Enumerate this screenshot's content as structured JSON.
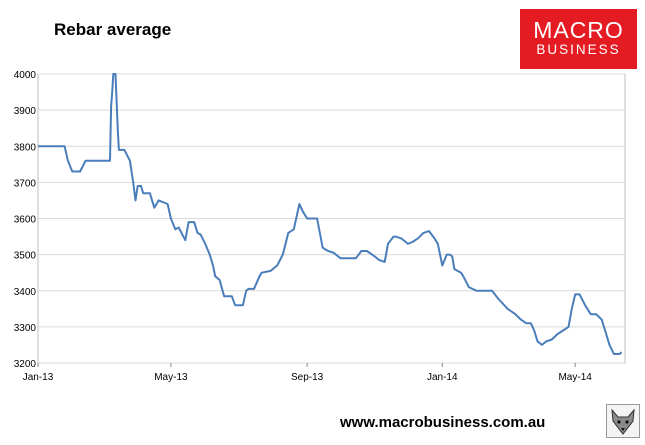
{
  "title": "Rebar average",
  "logo": {
    "line1": "MACRO",
    "line2": "BUSINESS"
  },
  "footer": "www.macrobusiness.com.au",
  "colors": {
    "line": "#4a7ebb",
    "brand": "#e41b22",
    "grid": "#d9d9d9"
  },
  "chart_data": {
    "type": "line",
    "title": "Rebar average",
    "xlabel": "",
    "ylabel": "",
    "ylim": [
      3200,
      4000
    ],
    "yticks": [
      "3200",
      "3300",
      "3400",
      "3500",
      "3600",
      "3700",
      "3800",
      "3900",
      "4000"
    ],
    "xticks": [
      "Jan-13",
      "May-13",
      "Sep-13",
      "Jan-14",
      "May-14"
    ],
    "xlim": [
      "2013-01-01",
      "2014-06-15"
    ],
    "grid": "horizontal",
    "legend": "none",
    "series": [
      {
        "x": [
          "2013-01-01",
          "2013-01-20",
          "2013-01-25",
          "2013-01-28",
          "2013-02-01",
          "2013-02-08",
          "2013-02-13",
          "2013-02-15",
          "2013-02-20",
          "2013-03-07",
          "2013-03-08",
          "2013-03-09",
          "2013-03-10",
          "2013-03-12",
          "2013-03-14",
          "2013-03-15",
          "2013-03-16",
          "2013-03-20",
          "2013-03-25",
          "2013-03-28",
          "2013-03-30",
          "2013-04-01",
          "2013-04-04",
          "2013-04-06",
          "2013-04-12",
          "2013-04-16",
          "2013-04-20",
          "2013-04-28",
          "2013-05-01",
          "2013-05-05",
          "2013-05-08",
          "2013-05-14",
          "2013-05-17",
          "2013-05-22",
          "2013-05-25",
          "2013-05-28",
          "2013-06-01",
          "2013-06-05",
          "2013-06-08",
          "2013-06-10",
          "2013-06-14",
          "2013-06-18",
          "2013-06-20",
          "2013-06-22",
          "2013-06-25",
          "2013-06-28",
          "2013-07-05",
          "2013-07-08",
          "2013-07-10",
          "2013-07-15",
          "2013-07-20",
          "2013-07-22",
          "2013-07-30",
          "2013-08-05",
          "2013-08-10",
          "2013-08-15",
          "2013-08-20",
          "2013-08-25",
          "2013-08-28",
          "2013-09-01",
          "2013-09-05",
          "2013-09-10",
          "2013-09-15",
          "2013-09-17",
          "2013-09-20",
          "2013-09-25",
          "2013-10-01",
          "2013-10-10",
          "2013-10-15",
          "2013-10-20",
          "2013-10-25",
          "2013-11-01",
          "2013-11-05",
          "2013-11-10",
          "2013-11-13",
          "2013-11-18",
          "2013-11-20",
          "2013-11-25",
          "2013-12-01",
          "2013-12-05",
          "2013-12-10",
          "2013-12-15",
          "2013-12-20",
          "2013-12-25",
          "2013-12-28",
          "2014-01-01",
          "2014-01-05",
          "2014-01-08",
          "2014-01-10",
          "2014-01-12",
          "2014-01-18",
          "2014-01-20",
          "2014-01-25",
          "2014-02-01",
          "2014-02-08",
          "2014-02-15",
          "2014-02-20",
          "2014-03-01",
          "2014-03-08",
          "2014-03-13",
          "2014-03-18",
          "2014-03-22",
          "2014-03-25",
          "2014-03-28",
          "2014-04-01",
          "2014-04-05",
          "2014-04-10",
          "2014-04-15",
          "2014-04-20",
          "2014-04-25",
          "2014-04-28",
          "2014-05-01",
          "2014-05-05",
          "2014-05-10",
          "2014-05-15",
          "2014-05-20",
          "2014-05-25",
          "2014-05-28",
          "2014-06-01",
          "2014-06-05",
          "2014-06-10",
          "2014-06-12"
        ],
        "y": [
          3800,
          3800,
          3800,
          3760,
          3730,
          3730,
          3760,
          3760,
          3760,
          3760,
          3910,
          3950,
          4020,
          4020,
          3850,
          3790,
          3790,
          3790,
          3760,
          3700,
          3650,
          3690,
          3690,
          3670,
          3670,
          3630,
          3650,
          3640,
          3600,
          3570,
          3575,
          3540,
          3590,
          3590,
          3560,
          3555,
          3530,
          3500,
          3470,
          3440,
          3430,
          3385,
          3385,
          3385,
          3385,
          3360,
          3360,
          3400,
          3405,
          3405,
          3440,
          3450,
          3455,
          3470,
          3500,
          3560,
          3570,
          3640,
          3620,
          3600,
          3600,
          3600,
          3520,
          3515,
          3510,
          3505,
          3490,
          3490,
          3490,
          3510,
          3510,
          3495,
          3485,
          3480,
          3530,
          3550,
          3550,
          3545,
          3530,
          3535,
          3545,
          3560,
          3565,
          3545,
          3530,
          3470,
          3500,
          3500,
          3495,
          3460,
          3450,
          3440,
          3410,
          3400,
          3400,
          3400,
          3380,
          3350,
          3335,
          3320,
          3310,
          3310,
          3290,
          3260,
          3250,
          3260,
          3265,
          3280,
          3290,
          3300,
          3350,
          3390,
          3390,
          3360,
          3335,
          3335,
          3320,
          3290,
          3250,
          3225,
          3225,
          3230
        ]
      }
    ]
  }
}
